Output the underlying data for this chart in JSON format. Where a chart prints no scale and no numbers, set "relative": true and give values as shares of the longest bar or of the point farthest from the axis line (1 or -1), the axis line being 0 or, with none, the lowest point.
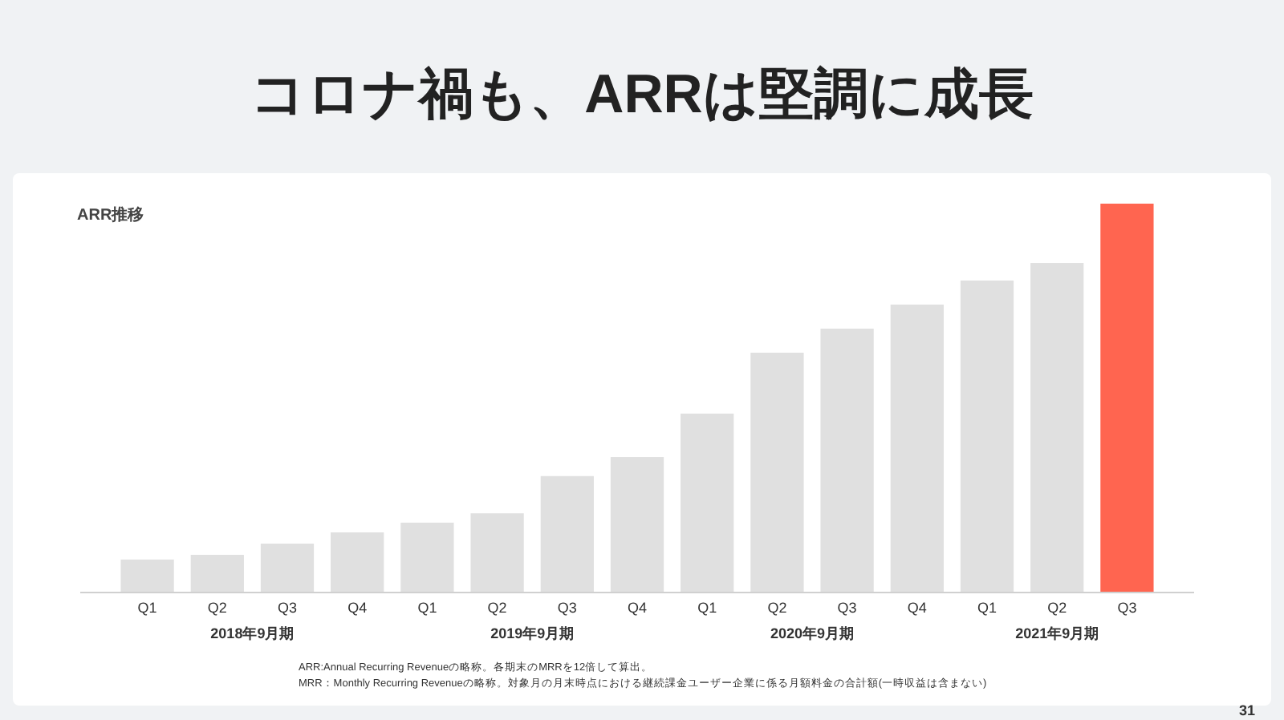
{
  "chart_data": {
    "type": "bar",
    "title": "コロナ禍も、ARRは堅調に成長",
    "subtitle": "ARR推移",
    "relative": true,
    "categories": [
      "Q1",
      "Q2",
      "Q3",
      "Q4",
      "Q1",
      "Q2",
      "Q3",
      "Q4",
      "Q1",
      "Q2",
      "Q3",
      "Q4",
      "Q1",
      "Q2",
      "Q3"
    ],
    "values": [
      0.083,
      0.095,
      0.124,
      0.153,
      0.178,
      0.202,
      0.298,
      0.347,
      0.459,
      0.616,
      0.678,
      0.74,
      0.802,
      0.847,
      1
    ],
    "colors": [
      "#e0e0e0",
      "#e0e0e0",
      "#e0e0e0",
      "#e0e0e0",
      "#e0e0e0",
      "#e0e0e0",
      "#e0e0e0",
      "#e0e0e0",
      "#e0e0e0",
      "#e0e0e0",
      "#e0e0e0",
      "#e0e0e0",
      "#e0e0e0",
      "#e0e0e0",
      "#ff6550"
    ],
    "annotations": [
      "2018年9月期",
      "2019年9月期",
      "2020年9月期",
      "2021年9月期",
      "ARR:Annual Recurring Revenueの略称。各期末のMRRを12倍して算出。",
      "MRR：Monthly Recurring Revenueの略称。対象月の月末時点における継続課金ユーザー企業に係る月額料金の合計額(一時収益は含まない)",
      "31"
    ]
  }
}
